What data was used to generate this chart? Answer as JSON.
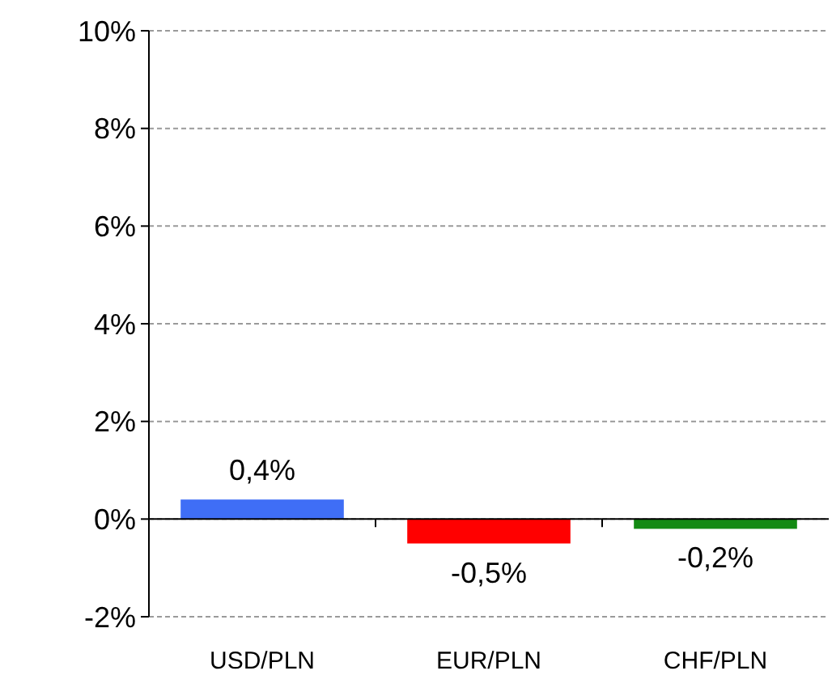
{
  "chart_data": {
    "type": "bar",
    "categories": [
      "USD/PLN",
      "EUR/PLN",
      "CHF/PLN"
    ],
    "values": [
      0.4,
      -0.5,
      -0.2
    ],
    "colors": [
      "#3f6ef6",
      "#ff0000",
      "#138a13"
    ],
    "value_labels": [
      "0,4%",
      "-0,5%",
      "-0,2%"
    ],
    "ylim": [
      -2,
      10
    ],
    "yticks": [
      {
        "value": -2,
        "label": "-2%"
      },
      {
        "value": 0,
        "label": "0%"
      },
      {
        "value": 2,
        "label": "2%"
      },
      {
        "value": 4,
        "label": "4%"
      },
      {
        "value": 6,
        "label": "6%"
      },
      {
        "value": 8,
        "label": "8%"
      },
      {
        "value": 10,
        "label": "10%"
      }
    ],
    "grid": "y"
  }
}
